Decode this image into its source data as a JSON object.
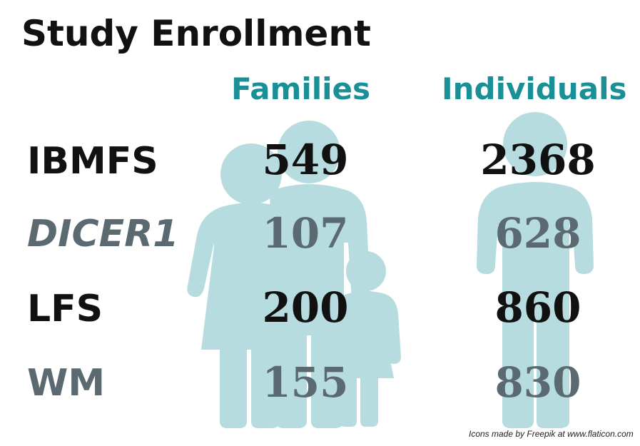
{
  "title": "Study Enrollment",
  "columns": {
    "families": "Families",
    "individuals": "Individuals"
  },
  "rows": [
    {
      "label": "IBMFS",
      "families": "549",
      "individuals": "2368",
      "italic": false,
      "tone": "dark"
    },
    {
      "label": "DICER1",
      "families": "107",
      "individuals": "628",
      "italic": true,
      "tone": "gray"
    },
    {
      "label": "LFS",
      "families": "200",
      "individuals": "860",
      "italic": false,
      "tone": "dark"
    },
    {
      "label": "WM",
      "families": "155",
      "individuals": "830",
      "italic": false,
      "tone": "gray"
    }
  ],
  "credit": "Icons made by Freepik at www.flaticon.com",
  "icons": {
    "family": "family-icon",
    "person": "person-icon"
  },
  "colors": {
    "accent": "#1a8f96",
    "figure": "#b7dcdf",
    "dark_text": "#111111",
    "gray_text": "#5a6a70"
  }
}
